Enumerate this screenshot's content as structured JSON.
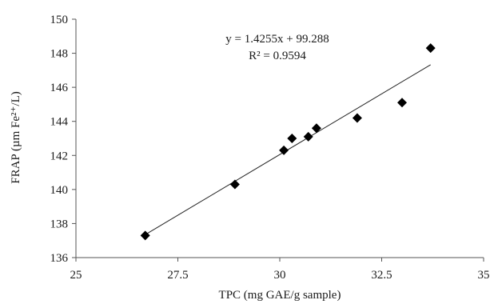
{
  "chart_data": {
    "type": "scatter",
    "xlabel": "TPC (mg GAE/g sample)",
    "ylabel": "FRAP (µm Fe²⁺/L)",
    "xlim": [
      25,
      35
    ],
    "ylim": [
      136,
      150
    ],
    "xticks": [
      "25",
      "27.5",
      "30",
      "32.5",
      "35"
    ],
    "yticks": [
      "136",
      "138",
      "140",
      "142",
      "144",
      "146",
      "148",
      "150"
    ],
    "grid": false,
    "marker": "diamond",
    "series": [
      {
        "x": [
          26.7,
          28.9,
          30.1,
          30.3,
          30.7,
          30.9,
          31.9,
          33.0,
          33.7
        ],
        "y": [
          137.3,
          140.3,
          142.3,
          143.0,
          143.1,
          143.6,
          144.2,
          145.1,
          148.3
        ]
      }
    ],
    "trendline": {
      "slope": 1.4255,
      "intercept": 99.288,
      "x_range": [
        26.7,
        33.7
      ],
      "equation": "y = 1.4255x + 99.288",
      "r_squared": "R² = 0.9594"
    }
  }
}
